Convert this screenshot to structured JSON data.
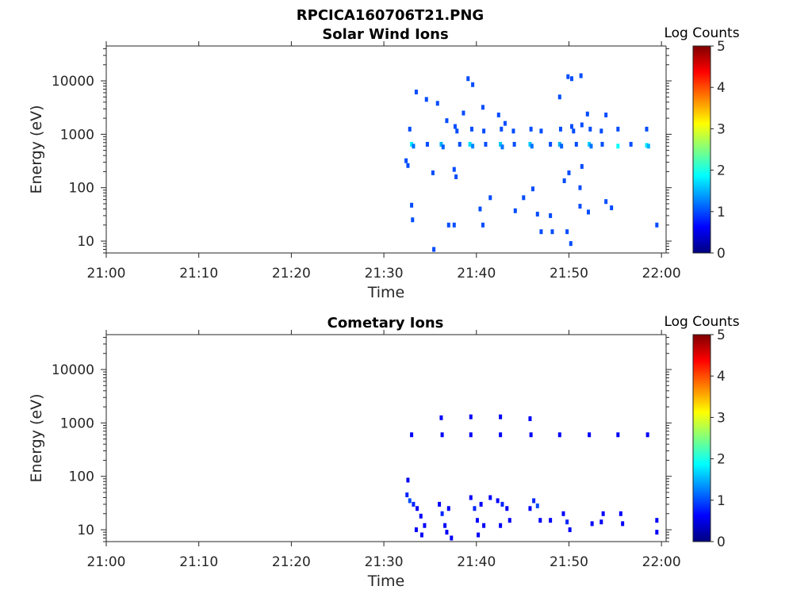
{
  "figure_title": "RPCICA160706T21.PNG",
  "colors": {
    "axis": "#262626",
    "background": "#ffffff"
  },
  "colormap": [
    "#00007f",
    "#0000ff",
    "#007fff",
    "#00ffff",
    "#7fff7f",
    "#ffff00",
    "#ff7f00",
    "#ff0000",
    "#7f0000"
  ],
  "chart_data": [
    {
      "type": "heatmap",
      "title": "Solar Wind Ions",
      "xlabel": "Time",
      "ylabel": "Energy (eV)",
      "xticks": [
        "21:00",
        "21:10",
        "21:20",
        "21:30",
        "21:40",
        "21:50",
        "22:00"
      ],
      "xlim_minutes": [
        0,
        60.5
      ],
      "yticks": [
        10,
        100,
        1000,
        10000
      ],
      "ytick_labels": [
        "10",
        "100",
        "1000",
        "10000"
      ],
      "ylim": [
        6,
        45000
      ],
      "yscale": "log",
      "colorbar": {
        "label": "Log Counts",
        "range": [
          0,
          5
        ],
        "ticks": [
          "0",
          "1",
          "2",
          "3",
          "4",
          "5"
        ]
      },
      "points": [
        [
          33.0,
          650,
          1.8
        ],
        [
          33.2,
          600,
          1.2
        ],
        [
          32.8,
          1250,
          1.0
        ],
        [
          36.2,
          650,
          1.5
        ],
        [
          36.4,
          580,
          1.1
        ],
        [
          39.3,
          650,
          1.7
        ],
        [
          39.6,
          600,
          1.3
        ],
        [
          39.5,
          1250,
          1.0
        ],
        [
          42.6,
          650,
          1.6
        ],
        [
          42.8,
          580,
          1.2
        ],
        [
          42.7,
          1250,
          1.0
        ],
        [
          45.8,
          650,
          1.6
        ],
        [
          46.0,
          600,
          1.2
        ],
        [
          45.9,
          1250,
          1.0
        ],
        [
          49.0,
          650,
          1.5
        ],
        [
          49.2,
          600,
          1.1
        ],
        [
          49.1,
          1250,
          1.0
        ],
        [
          52.2,
          650,
          1.6
        ],
        [
          52.4,
          600,
          1.2
        ],
        [
          52.3,
          1250,
          1.0
        ],
        [
          55.3,
          600,
          1.9
        ],
        [
          55.3,
          1250,
          1.0
        ],
        [
          58.4,
          620,
          1.8
        ],
        [
          58.6,
          600,
          1.5
        ],
        [
          58.4,
          1250,
          1.0
        ],
        [
          34.7,
          650,
          1.0
        ],
        [
          38.2,
          650,
          1.0
        ],
        [
          41.0,
          650,
          1.0
        ],
        [
          44.1,
          650,
          1.0
        ],
        [
          48.0,
          650,
          1.0
        ],
        [
          50.8,
          650,
          1.0
        ],
        [
          53.6,
          650,
          1.0
        ],
        [
          56.7,
          650,
          1.0
        ],
        [
          37.7,
          1400,
          1.0
        ],
        [
          37.9,
          1150,
          1.0
        ],
        [
          40.8,
          1150,
          1.0
        ],
        [
          44.0,
          1150,
          1.0
        ],
        [
          47.0,
          1150,
          1.0
        ],
        [
          50.5,
          1150,
          1.0
        ],
        [
          53.5,
          1150,
          1.0
        ],
        [
          32.4,
          320,
          1.0
        ],
        [
          32.6,
          260,
          1.0
        ],
        [
          33.5,
          6200,
          1.0
        ],
        [
          34.6,
          4500,
          1.0
        ],
        [
          35.8,
          3800,
          1.0
        ],
        [
          39.1,
          11000,
          1.0
        ],
        [
          39.6,
          8500,
          1.0
        ],
        [
          40.7,
          3200,
          1.0
        ],
        [
          42.4,
          2300,
          1.0
        ],
        [
          43.1,
          1600,
          1.0
        ],
        [
          49.0,
          5000,
          1.0
        ],
        [
          49.9,
          12000,
          1.0
        ],
        [
          50.3,
          11000,
          1.0
        ],
        [
          51.3,
          12500,
          1.0
        ],
        [
          52.0,
          2400,
          1.0
        ],
        [
          51.4,
          1500,
          1.0
        ],
        [
          54.0,
          2300,
          1.0
        ],
        [
          50.3,
          1400,
          1.0
        ],
        [
          38.6,
          2500,
          1.0
        ],
        [
          36.8,
          1800,
          1.0
        ],
        [
          35.3,
          190,
          1.0
        ],
        [
          37.6,
          220,
          1.0
        ],
        [
          37.8,
          160,
          1.0
        ],
        [
          51.4,
          250,
          1.0
        ],
        [
          50.0,
          190,
          1.0
        ],
        [
          49.5,
          135,
          1.0
        ],
        [
          51.2,
          100,
          1.0
        ],
        [
          46.1,
          95,
          1.0
        ],
        [
          33.0,
          47,
          1.0
        ],
        [
          33.1,
          25,
          1.0
        ],
        [
          37.0,
          20,
          1.0
        ],
        [
          37.6,
          20,
          1.0
        ],
        [
          40.4,
          40,
          1.0
        ],
        [
          40.7,
          20,
          1.0
        ],
        [
          41.5,
          65,
          1.0
        ],
        [
          44.2,
          37,
          1.0
        ],
        [
          45.1,
          65,
          1.0
        ],
        [
          46.6,
          32,
          1.0
        ],
        [
          47.0,
          15,
          1.0
        ],
        [
          48.0,
          30,
          1.0
        ],
        [
          48.2,
          15,
          1.0
        ],
        [
          49.8,
          15,
          1.0
        ],
        [
          50.2,
          9,
          1.0
        ],
        [
          51.2,
          45,
          1.0
        ],
        [
          52.1,
          35,
          1.0
        ],
        [
          54.0,
          55,
          1.0
        ],
        [
          54.6,
          42,
          1.0
        ],
        [
          59.5,
          20,
          1.0
        ],
        [
          35.4,
          7,
          1.0
        ]
      ]
    },
    {
      "type": "heatmap",
      "title": "Cometary Ions",
      "xlabel": "Time",
      "ylabel": "Energy (eV)",
      "xticks": [
        "21:00",
        "21:10",
        "21:20",
        "21:30",
        "21:40",
        "21:50",
        "22:00"
      ],
      "xlim_minutes": [
        0,
        60.5
      ],
      "yticks": [
        10,
        100,
        1000,
        10000
      ],
      "ytick_labels": [
        "10",
        "100",
        "1000",
        "10000"
      ],
      "ylim": [
        6,
        45000
      ],
      "yscale": "log",
      "colorbar": {
        "label": "Log Counts",
        "range": [
          0,
          5
        ],
        "ticks": [
          "0",
          "1",
          "2",
          "3",
          "4",
          "5"
        ]
      },
      "points": [
        [
          33.0,
          600,
          0.6
        ],
        [
          36.3,
          600,
          0.6
        ],
        [
          39.4,
          600,
          0.6
        ],
        [
          42.6,
          600,
          0.6
        ],
        [
          45.9,
          600,
          0.6
        ],
        [
          49.0,
          600,
          0.6
        ],
        [
          52.2,
          600,
          0.6
        ],
        [
          55.3,
          600,
          0.6
        ],
        [
          58.5,
          600,
          0.6
        ],
        [
          36.2,
          1250,
          0.6
        ],
        [
          39.4,
          1300,
          0.6
        ],
        [
          42.6,
          1300,
          0.6
        ],
        [
          45.8,
          1200,
          0.6
        ],
        [
          32.6,
          85,
          0.6
        ],
        [
          32.5,
          45,
          0.8
        ],
        [
          32.8,
          35,
          1.0
        ],
        [
          33.2,
          30,
          0.8
        ],
        [
          33.6,
          25,
          0.6
        ],
        [
          34.0,
          18,
          0.6
        ],
        [
          34.4,
          12,
          0.6
        ],
        [
          34.1,
          8,
          0.6
        ],
        [
          33.5,
          10,
          0.6
        ],
        [
          36.0,
          30,
          0.6
        ],
        [
          36.3,
          20,
          0.8
        ],
        [
          36.6,
          12,
          0.6
        ],
        [
          37.0,
          25,
          0.6
        ],
        [
          36.8,
          9,
          0.6
        ],
        [
          39.4,
          40,
          0.6
        ],
        [
          39.8,
          25,
          0.8
        ],
        [
          40.1,
          15,
          0.6
        ],
        [
          40.5,
          30,
          0.6
        ],
        [
          40.8,
          12,
          0.6
        ],
        [
          41.5,
          40,
          0.6
        ],
        [
          42.3,
          35,
          0.6
        ],
        [
          42.8,
          30,
          0.8
        ],
        [
          43.3,
          25,
          0.6
        ],
        [
          43.6,
          15,
          0.6
        ],
        [
          42.6,
          12,
          0.6
        ],
        [
          45.8,
          25,
          0.6
        ],
        [
          46.2,
          35,
          0.8
        ],
        [
          46.6,
          28,
          1.0
        ],
        [
          46.9,
          15,
          0.6
        ],
        [
          49.4,
          20,
          0.6
        ],
        [
          49.8,
          14,
          0.8
        ],
        [
          50.1,
          10,
          0.6
        ],
        [
          53.7,
          20,
          0.6
        ],
        [
          53.5,
          14,
          0.6
        ],
        [
          55.6,
          20,
          0.6
        ],
        [
          55.8,
          13,
          0.6
        ],
        [
          59.5,
          15,
          0.6
        ],
        [
          59.5,
          9,
          0.6
        ],
        [
          37.3,
          7,
          0.6
        ],
        [
          40.2,
          8,
          0.6
        ],
        [
          48.0,
          15,
          0.6
        ],
        [
          52.5,
          13,
          0.6
        ]
      ]
    }
  ]
}
